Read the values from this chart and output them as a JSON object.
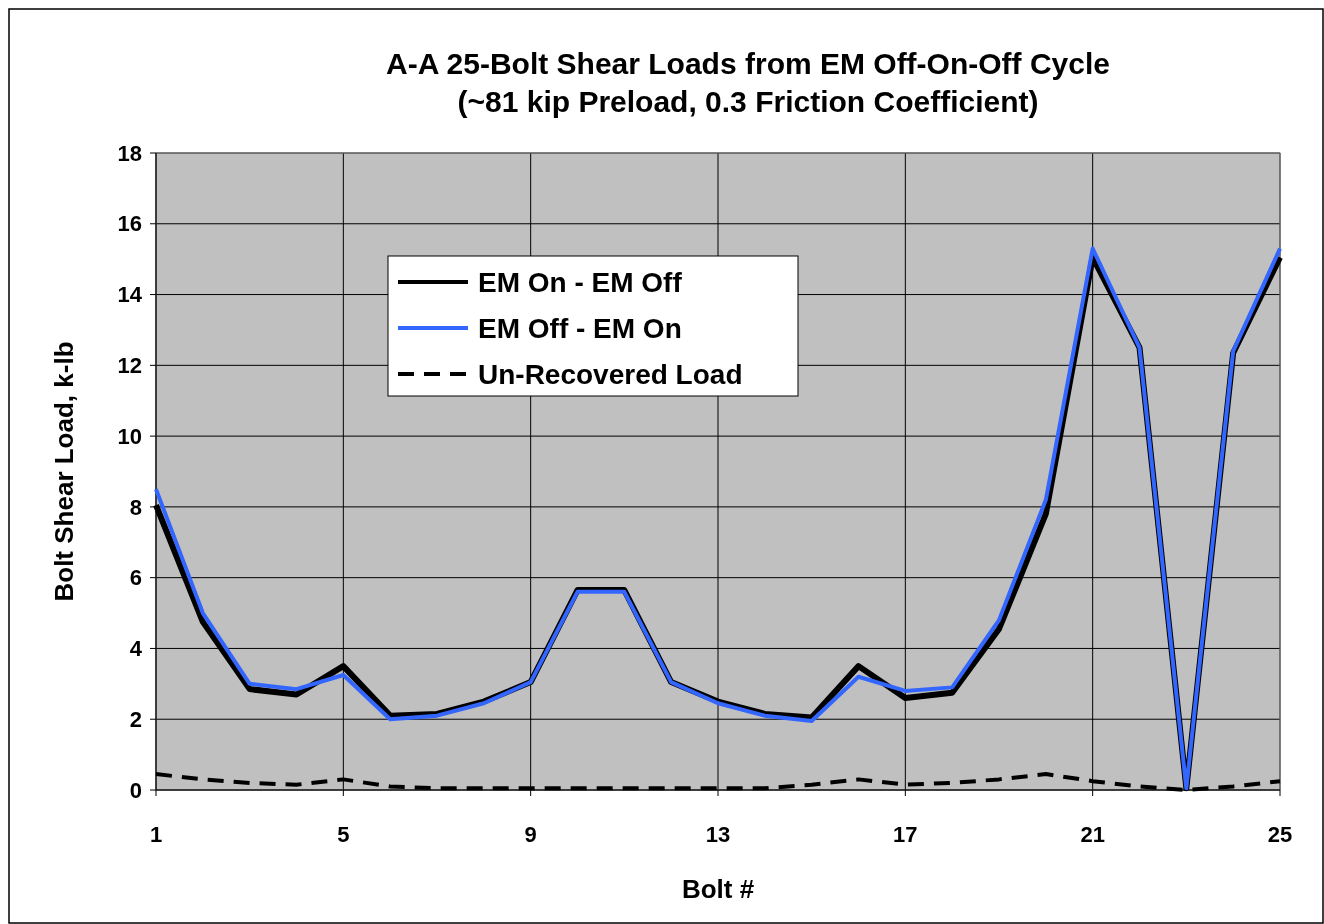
{
  "chart_data": {
    "type": "line",
    "title": "A-A 25-Bolt Shear Loads from EM Off-On-Off Cycle\n(~81 kip Preload, 0.3 Friction Coefficient)",
    "xlabel": "Bolt #",
    "ylabel": "Bolt Shear Load, k-lb",
    "x": [
      1,
      2,
      3,
      4,
      5,
      6,
      7,
      8,
      9,
      10,
      11,
      12,
      13,
      14,
      15,
      16,
      17,
      18,
      19,
      20,
      21,
      22,
      23,
      24,
      25
    ],
    "series": [
      {
        "name": "EM On - EM Off",
        "color": "#000000",
        "line_style": "solid",
        "values": [
          8.05,
          4.75,
          2.85,
          2.7,
          3.5,
          2.1,
          2.15,
          2.5,
          3.05,
          5.65,
          5.65,
          3.05,
          2.5,
          2.15,
          2.05,
          3.5,
          2.6,
          2.75,
          4.55,
          7.8,
          15.05,
          12.5,
          0.05,
          12.35,
          15.05
        ]
      },
      {
        "name": "EM Off - EM On",
        "color": "#3366ff",
        "line_style": "solid",
        "values": [
          8.5,
          5.0,
          3.0,
          2.85,
          3.25,
          2.0,
          2.1,
          2.45,
          3.05,
          5.6,
          5.6,
          3.05,
          2.45,
          2.1,
          1.95,
          3.2,
          2.8,
          2.9,
          4.8,
          8.2,
          15.3,
          12.5,
          0.05,
          12.4,
          15.3
        ]
      },
      {
        "name": "Un-Recovered Load",
        "color": "#000000",
        "line_style": "dashed",
        "values": [
          0.45,
          0.3,
          0.2,
          0.15,
          0.3,
          0.1,
          0.05,
          0.05,
          0.05,
          0.05,
          0.05,
          0.05,
          0.05,
          0.05,
          0.15,
          0.3,
          0.15,
          0.2,
          0.3,
          0.45,
          0.25,
          0.1,
          0.0,
          0.1,
          0.25
        ]
      }
    ],
    "xlim": [
      1,
      25
    ],
    "xticks": [
      1,
      5,
      9,
      13,
      17,
      21,
      25
    ],
    "ylim": [
      0,
      18
    ],
    "yticks": [
      0,
      2,
      4,
      6,
      8,
      10,
      12,
      14,
      16,
      18
    ],
    "grid": true,
    "legend": "top left",
    "marker": "none"
  }
}
